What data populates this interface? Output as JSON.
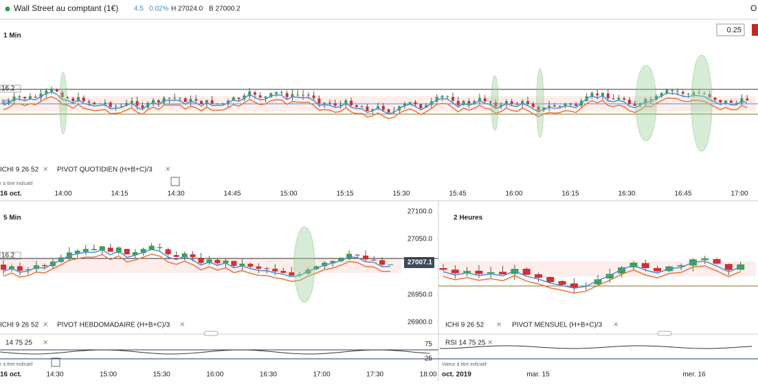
{
  "header": {
    "instrument": "Wall Street au comptant (1€)",
    "change": "4.5",
    "change_pct": "0.02%",
    "high": "H 27024.0",
    "low": "B 27000.2",
    "corner": "O"
  },
  "top": {
    "timeframe": "1 Min",
    "quantity": "0.25",
    "levels": [
      "16.2",
      "00.0"
    ],
    "ichi": "ICHI 9 26 52",
    "pivot": "PIVOT QUOTIDIEN (H+B+C)/3",
    "note": "r à titre indicatif",
    "date": "16 oct.",
    "times": [
      "14:00",
      "14:15",
      "14:30",
      "14:45",
      "15:00",
      "15:15",
      "15:30",
      "15:45",
      "16:00",
      "16:15",
      "16:30",
      "16:45",
      "17:00"
    ]
  },
  "left": {
    "timeframe": "5 Min",
    "prices": [
      "27100.0",
      "27050.0",
      "27007.1",
      "26950.0",
      "26900.0"
    ],
    "level": "16.2",
    "ichi": "ICHI 9 26 52",
    "pivot": "PIVOT HEBDOMADAIRE (H+B+C)/3",
    "rsi": "14 75 25",
    "rsi_levels": [
      "75",
      "25"
    ],
    "note": "r à titre indicatif",
    "date": "16 oct.",
    "times": [
      "14:30",
      "15:00",
      "15:30",
      "16:00",
      "16:30",
      "17:00",
      "17:30",
      "18:00"
    ]
  },
  "right": {
    "timeframe": "2 Heures",
    "ichi": "ICHI 9 26 52",
    "pivot": "PIVOT MENSUEL (H+B+C)/3",
    "rsi": "RSI 14 75 25",
    "note": "Valeur à titre indicatif",
    "date": "oct. 2019",
    "times": [
      "mar. 15",
      "mer. 16"
    ]
  }
}
